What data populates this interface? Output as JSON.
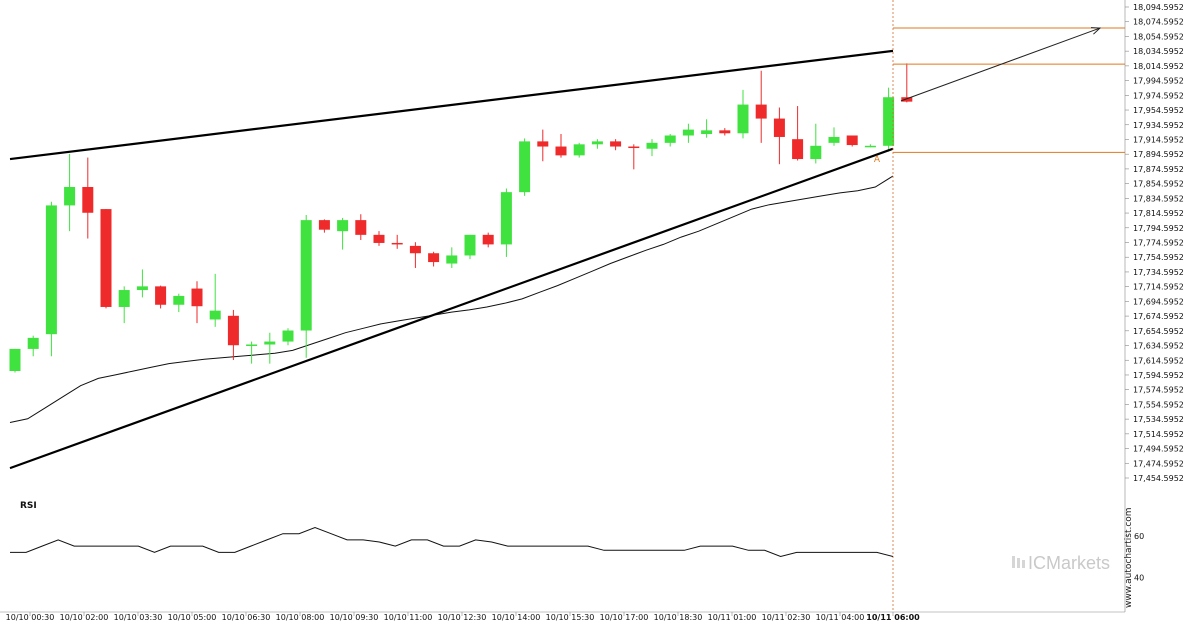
{
  "chart_data": {
    "type": "candlestick",
    "y_ticks": [
      "18,094.5952",
      "18,074.5952",
      "18,054.5952",
      "18,034.5952",
      "18,014.5952",
      "17,994.5952",
      "17,974.5952",
      "17,954.5952",
      "17,934.5952",
      "17,914.5952",
      "17,894.5952",
      "17,874.5952",
      "17,854.5952",
      "17,834.5952",
      "17,814.5952",
      "17,794.5952",
      "17,774.5952",
      "17,754.5952",
      "17,734.5952",
      "17,714.5952",
      "17,694.5952",
      "17,674.5952",
      "17,654.5952",
      "17,634.5952",
      "17,614.5952",
      "17,594.5952",
      "17,574.5952",
      "17,554.5952",
      "17,534.5952",
      "17,514.5952",
      "17,494.5952",
      "17,474.5952",
      "17,454.5952"
    ],
    "x_ticks": [
      "10/10 00:30",
      "10/10 02:00",
      "10/10 03:30",
      "10/10 05:00",
      "10/10 06:30",
      "10/10 08:00",
      "10/10 09:30",
      "10/10 11:00",
      "10/10 12:30",
      "10/10 14:00",
      "10/10 15:30",
      "10/10 17:00",
      "10/10 18:30",
      "10/11 01:00",
      "10/11 02:30",
      "10/11 04:00",
      "10/11 06:00"
    ],
    "ylim": [
      17454.5952,
      18094.5952
    ],
    "candles": [
      {
        "o": 17600,
        "h": 17630,
        "l": 17598,
        "c": 17630
      },
      {
        "o": 17630,
        "h": 17648,
        "l": 17620,
        "c": 17645
      },
      {
        "o": 17650,
        "h": 17830,
        "l": 17620,
        "c": 17825
      },
      {
        "o": 17825,
        "h": 17895,
        "l": 17790,
        "c": 17850
      },
      {
        "o": 17850,
        "h": 17890,
        "l": 17780,
        "c": 17815
      },
      {
        "o": 17820,
        "h": 17820,
        "l": 17685,
        "c": 17687
      },
      {
        "o": 17687,
        "h": 17715,
        "l": 17665,
        "c": 17710
      },
      {
        "o": 17710,
        "h": 17738,
        "l": 17700,
        "c": 17715
      },
      {
        "o": 17715,
        "h": 17716,
        "l": 17685,
        "c": 17690
      },
      {
        "o": 17690,
        "h": 17705,
        "l": 17680,
        "c": 17702
      },
      {
        "o": 17712,
        "h": 17722,
        "l": 17665,
        "c": 17688
      },
      {
        "o": 17670,
        "h": 17732,
        "l": 17660,
        "c": 17682
      },
      {
        "o": 17675,
        "h": 17683,
        "l": 17615,
        "c": 17635
      },
      {
        "o": 17635,
        "h": 17640,
        "l": 17610,
        "c": 17636
      },
      {
        "o": 17636,
        "h": 17652,
        "l": 17610,
        "c": 17640
      },
      {
        "o": 17640,
        "h": 17658,
        "l": 17635,
        "c": 17655
      },
      {
        "o": 17655,
        "h": 17812,
        "l": 17618,
        "c": 17805
      },
      {
        "o": 17805,
        "h": 17806,
        "l": 17788,
        "c": 17792
      },
      {
        "o": 17790,
        "h": 17808,
        "l": 17765,
        "c": 17805
      },
      {
        "o": 17805,
        "h": 17813,
        "l": 17778,
        "c": 17785
      },
      {
        "o": 17785,
        "h": 17790,
        "l": 17770,
        "c": 17774
      },
      {
        "o": 17774,
        "h": 17785,
        "l": 17766,
        "c": 17773
      },
      {
        "o": 17770,
        "h": 17775,
        "l": 17740,
        "c": 17760
      },
      {
        "o": 17760,
        "h": 17762,
        "l": 17742,
        "c": 17748
      },
      {
        "o": 17746,
        "h": 17768,
        "l": 17740,
        "c": 17757
      },
      {
        "o": 17757,
        "h": 17785,
        "l": 17752,
        "c": 17785
      },
      {
        "o": 17785,
        "h": 17788,
        "l": 17768,
        "c": 17772
      },
      {
        "o": 17772,
        "h": 17848,
        "l": 17755,
        "c": 17843
      },
      {
        "o": 17843,
        "h": 17916,
        "l": 17838,
        "c": 17912
      },
      {
        "o": 17912,
        "h": 17928,
        "l": 17885,
        "c": 17905
      },
      {
        "o": 17905,
        "h": 17922,
        "l": 17890,
        "c": 17893
      },
      {
        "o": 17893,
        "h": 17910,
        "l": 17890,
        "c": 17908
      },
      {
        "o": 17908,
        "h": 17915,
        "l": 17902,
        "c": 17912
      },
      {
        "o": 17912,
        "h": 17915,
        "l": 17900,
        "c": 17905
      },
      {
        "o": 17905,
        "h": 17908,
        "l": 17874,
        "c": 17903
      },
      {
        "o": 17902,
        "h": 17915,
        "l": 17892,
        "c": 17910
      },
      {
        "o": 17910,
        "h": 17922,
        "l": 17905,
        "c": 17920
      },
      {
        "o": 17920,
        "h": 17936,
        "l": 17910,
        "c": 17928
      },
      {
        "o": 17922,
        "h": 17942,
        "l": 17917,
        "c": 17927
      },
      {
        "o": 17927,
        "h": 17930,
        "l": 17920,
        "c": 17923
      },
      {
        "o": 17923,
        "h": 17982,
        "l": 17916,
        "c": 17962
      },
      {
        "o": 17962,
        "h": 18008,
        "l": 17910,
        "c": 17943
      },
      {
        "o": 17943,
        "h": 17958,
        "l": 17881,
        "c": 17918
      },
      {
        "o": 17915,
        "h": 17960,
        "l": 17886,
        "c": 17888
      },
      {
        "o": 17888,
        "h": 17936,
        "l": 17882,
        "c": 17906
      },
      {
        "o": 17910,
        "h": 17931,
        "l": 17906,
        "c": 17918
      },
      {
        "o": 17920,
        "h": 17920,
        "l": 17905,
        "c": 17907
      },
      {
        "o": 17906,
        "h": 17908,
        "l": 17904,
        "c": 17906
      },
      {
        "o": 17906,
        "h": 17985,
        "l": 17898,
        "c": 17972
      },
      {
        "o": 17972,
        "h": 18018,
        "l": 17965,
        "c": 17966
      }
    ],
    "ma_line": [
      17530,
      17535,
      17550,
      17565,
      17580,
      17590,
      17595,
      17600,
      17605,
      17610,
      17613,
      17616,
      17618,
      17620,
      17622,
      17624,
      17628,
      17636,
      17644,
      17652,
      17658,
      17664,
      17668,
      17672,
      17676,
      17680,
      17683,
      17687,
      17692,
      17698,
      17707,
      17716,
      17726,
      17736,
      17746,
      17755,
      17764,
      17772,
      17782,
      17790,
      17800,
      17810,
      17820,
      17826,
      17830,
      17834,
      17838,
      17842,
      17845,
      17850,
      17865
    ],
    "rsi_yticks": [
      "60",
      "40"
    ],
    "rsi_ylim": [
      30,
      70
    ],
    "rsi_values": [
      52,
      52,
      55,
      58,
      55,
      55,
      55,
      55,
      55,
      52,
      55,
      55,
      55,
      52,
      52,
      55,
      58,
      61,
      61,
      64,
      61,
      58,
      58,
      57,
      55,
      58,
      58,
      55,
      55,
      58,
      57,
      55,
      55,
      55,
      55,
      55,
      55,
      53,
      53,
      53,
      53,
      53,
      53,
      55,
      55,
      55,
      53,
      53,
      50,
      52,
      52,
      52,
      52,
      52,
      52,
      50
    ],
    "resistance_line": {
      "x_index": [
        0,
        49
      ],
      "y": [
        17888,
        18035
      ]
    },
    "support_line": {
      "x_index": [
        0,
        49
      ],
      "y": [
        17468,
        17902
      ]
    },
    "forecast_arrow": {
      "from": 17967,
      "to": 18066
    },
    "level_lines": [
      18066,
      18017,
      17897
    ],
    "pattern_marker": "A"
  },
  "labels": {
    "rsi_title": "RSI",
    "brand": "ICMarkets",
    "source": "www.autochartist.com"
  },
  "colors": {
    "bull": "#3fe23f",
    "bear": "#ee2a2a",
    "trendline": "#000000",
    "level": "#e0781f",
    "ma": "#111111",
    "grid": "#e5e5e5"
  }
}
